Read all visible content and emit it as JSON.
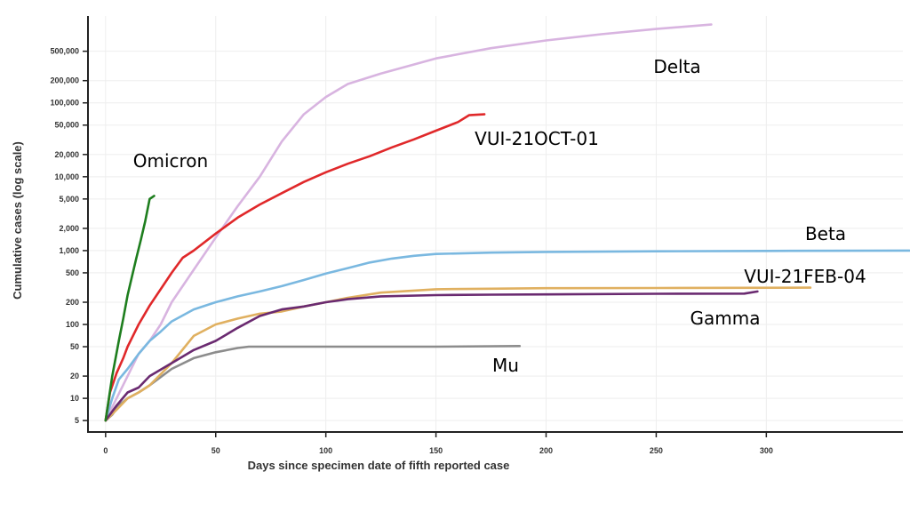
{
  "chart_data": {
    "type": "line",
    "title": "",
    "xlabel": "Days since specimen date of fifth reported case",
    "ylabel": "Cumulative cases (log scale)",
    "y_scale": "log",
    "xlim": [
      -8,
      362
    ],
    "ylim": [
      3.5,
      1500000
    ],
    "grid": true,
    "legend": "direct labels on lines",
    "x_ticks": [
      0,
      50,
      100,
      150,
      200,
      250,
      300
    ],
    "x_tick_labels": [
      "0",
      "50",
      "100",
      "150",
      "200",
      "250",
      "300"
    ],
    "y_ticks": [
      5,
      10,
      20,
      50,
      100,
      200,
      500,
      1000,
      2000,
      5000,
      10000,
      20000,
      50000,
      100000,
      200000,
      500000
    ],
    "y_tick_labels": [
      "5",
      "10",
      "20",
      "50",
      "100",
      "200",
      "500",
      "1,000",
      "2,000",
      "5,000",
      "10,000",
      "20,000",
      "50,000",
      "100,000",
      "200,000",
      "500,000"
    ],
    "series": [
      {
        "name": "Delta",
        "color": "#d8b4e0",
        "x": [
          0,
          5,
          10,
          15,
          20,
          25,
          30,
          40,
          50,
          60,
          70,
          80,
          90,
          100,
          110,
          125,
          150,
          175,
          200,
          225,
          250,
          275
        ],
        "y": [
          5,
          10,
          20,
          40,
          60,
          100,
          200,
          550,
          1500,
          4000,
          10000,
          30000,
          70000,
          120000,
          180000,
          250000,
          400000,
          550000,
          700000,
          850000,
          1000000,
          1150000
        ]
      },
      {
        "name": "VUI-21OCT-01",
        "color": "#e0282a",
        "x": [
          0,
          2,
          5,
          8,
          10,
          15,
          20,
          25,
          30,
          35,
          40,
          50,
          60,
          70,
          80,
          90,
          100,
          110,
          120,
          130,
          140,
          150,
          160,
          165,
          172
        ],
        "y": [
          5,
          12,
          22,
          35,
          50,
          100,
          180,
          300,
          500,
          800,
          1000,
          1700,
          2800,
          4200,
          6000,
          8500,
          11500,
          15000,
          19000,
          25000,
          32000,
          42000,
          55000,
          68000,
          70000
        ]
      },
      {
        "name": "Omicron",
        "color": "#1e7e1e",
        "x": [
          0,
          3,
          6,
          8,
          10,
          12,
          14,
          16,
          18,
          20,
          22
        ],
        "y": [
          5,
          20,
          60,
          120,
          250,
          450,
          800,
          1400,
          2500,
          5000,
          5500
        ]
      },
      {
        "name": "Beta",
        "color": "#7ab8e0",
        "x": [
          0,
          3,
          6,
          10,
          15,
          20,
          25,
          30,
          40,
          50,
          60,
          70,
          80,
          90,
          100,
          110,
          120,
          130,
          140,
          150,
          175,
          200,
          250,
          300,
          365
        ],
        "y": [
          5,
          10,
          18,
          25,
          40,
          60,
          80,
          110,
          160,
          200,
          240,
          280,
          330,
          400,
          490,
          580,
          690,
          780,
          850,
          900,
          940,
          960,
          980,
          990,
          1000
        ]
      },
      {
        "name": "VUI-21FEB-04",
        "color": "#e0b060",
        "x": [
          0,
          5,
          10,
          15,
          20,
          30,
          40,
          50,
          60,
          70,
          80,
          90,
          100,
          110,
          125,
          150,
          175,
          200,
          250,
          320
        ],
        "y": [
          5,
          7,
          10,
          12,
          15,
          30,
          70,
          100,
          120,
          140,
          150,
          175,
          200,
          230,
          270,
          300,
          305,
          310,
          312,
          315
        ]
      },
      {
        "name": "Gamma",
        "color": "#6a2a70",
        "x": [
          0,
          5,
          10,
          15,
          20,
          30,
          40,
          50,
          60,
          70,
          80,
          90,
          100,
          110,
          125,
          150,
          175,
          200,
          250,
          290,
          296
        ],
        "y": [
          5,
          8,
          12,
          14,
          20,
          30,
          45,
          60,
          90,
          130,
          160,
          175,
          200,
          220,
          240,
          250,
          253,
          255,
          260,
          262,
          280
        ]
      },
      {
        "name": "Mu",
        "color": "#8c8c8c",
        "x": [
          0,
          3,
          6,
          10,
          15,
          20,
          30,
          40,
          50,
          60,
          65,
          100,
          150,
          188
        ],
        "y": [
          5,
          6,
          8,
          10,
          12,
          15,
          25,
          35,
          42,
          48,
          50,
          50,
          50,
          51
        ]
      }
    ]
  }
}
